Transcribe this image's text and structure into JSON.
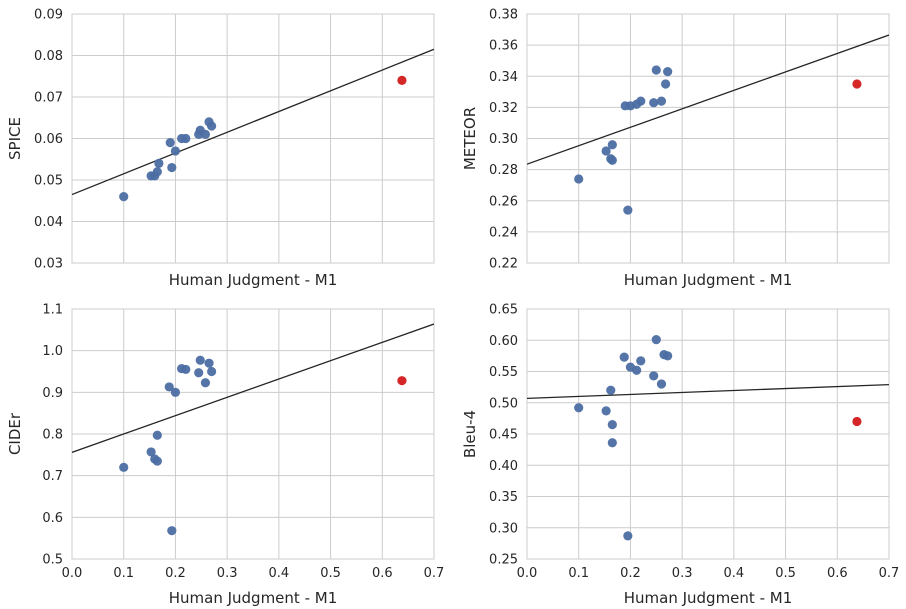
{
  "colors": {
    "point": "#4c6ea3",
    "outlier": "#d62728",
    "fit_line": "#262626",
    "grid": "#cccccc"
  },
  "chart_data": [
    {
      "type": "scatter",
      "xlabel": "Human Judgment - M1",
      "ylabel": "SPICE",
      "xlim": [
        0.0,
        0.7
      ],
      "ylim": [
        0.03,
        0.09
      ],
      "xticks": [
        "0.0",
        "0.1",
        "0.2",
        "0.3",
        "0.4",
        "0.5",
        "0.6",
        "0.7"
      ],
      "yticks": [
        "0.03",
        "0.04",
        "0.05",
        "0.06",
        "0.07",
        "0.08",
        "0.09"
      ],
      "show_xtick_labels": false,
      "grid": true,
      "points": [
        [
          0.1,
          0.046
        ],
        [
          0.153,
          0.051
        ],
        [
          0.16,
          0.051
        ],
        [
          0.165,
          0.052
        ],
        [
          0.168,
          0.054
        ],
        [
          0.19,
          0.059
        ],
        [
          0.193,
          0.053
        ],
        [
          0.2,
          0.057
        ],
        [
          0.212,
          0.06
        ],
        [
          0.22,
          0.06
        ],
        [
          0.245,
          0.061
        ],
        [
          0.248,
          0.062
        ],
        [
          0.258,
          0.061
        ],
        [
          0.265,
          0.064
        ],
        [
          0.27,
          0.063
        ]
      ],
      "outlier": [
        0.638,
        0.074
      ],
      "fit_line": [
        [
          0.0,
          0.0465
        ],
        [
          0.7,
          0.0815
        ]
      ]
    },
    {
      "type": "scatter",
      "xlabel": "Human Judgment - M1",
      "ylabel": "METEOR",
      "xlim": [
        0.0,
        0.7
      ],
      "ylim": [
        0.22,
        0.38
      ],
      "xticks": [
        "0.0",
        "0.1",
        "0.2",
        "0.3",
        "0.4",
        "0.5",
        "0.6",
        "0.7"
      ],
      "yticks": [
        "0.22",
        "0.24",
        "0.26",
        "0.28",
        "0.30",
        "0.32",
        "0.34",
        "0.36",
        "0.38"
      ],
      "show_xtick_labels": false,
      "grid": true,
      "points": [
        [
          0.1,
          0.274
        ],
        [
          0.153,
          0.292
        ],
        [
          0.162,
          0.287
        ],
        [
          0.165,
          0.296
        ],
        [
          0.165,
          0.286
        ],
        [
          0.19,
          0.321
        ],
        [
          0.195,
          0.254
        ],
        [
          0.2,
          0.321
        ],
        [
          0.212,
          0.322
        ],
        [
          0.22,
          0.324
        ],
        [
          0.245,
          0.323
        ],
        [
          0.25,
          0.344
        ],
        [
          0.26,
          0.324
        ],
        [
          0.268,
          0.335
        ],
        [
          0.272,
          0.343
        ]
      ],
      "outlier": [
        0.638,
        0.335
      ],
      "fit_line": [
        [
          0.0,
          0.2835
        ],
        [
          0.7,
          0.3665
        ]
      ]
    },
    {
      "type": "scatter",
      "xlabel": "Human Judgment - M1",
      "ylabel": "CIDEr",
      "xlim": [
        0.0,
        0.7
      ],
      "ylim": [
        0.5,
        1.1
      ],
      "xticks": [
        "0.0",
        "0.1",
        "0.2",
        "0.3",
        "0.4",
        "0.5",
        "0.6",
        "0.7"
      ],
      "yticks": [
        "0.5",
        "0.6",
        "0.7",
        "0.8",
        "0.9",
        "1.0",
        "1.1"
      ],
      "show_xtick_labels": true,
      "grid": true,
      "points": [
        [
          0.1,
          0.72
        ],
        [
          0.153,
          0.757
        ],
        [
          0.16,
          0.74
        ],
        [
          0.165,
          0.735
        ],
        [
          0.165,
          0.797
        ],
        [
          0.188,
          0.913
        ],
        [
          0.193,
          0.568
        ],
        [
          0.2,
          0.9
        ],
        [
          0.212,
          0.957
        ],
        [
          0.22,
          0.955
        ],
        [
          0.245,
          0.947
        ],
        [
          0.248,
          0.977
        ],
        [
          0.258,
          0.923
        ],
        [
          0.265,
          0.97
        ],
        [
          0.27,
          0.95
        ]
      ],
      "outlier": [
        0.638,
        0.928
      ],
      "fit_line": [
        [
          0.0,
          0.756
        ],
        [
          0.7,
          1.064
        ]
      ]
    },
    {
      "type": "scatter",
      "xlabel": "Human Judgment - M1",
      "ylabel": "Bleu-4",
      "xlim": [
        0.0,
        0.7
      ],
      "ylim": [
        0.25,
        0.65
      ],
      "xticks": [
        "0.0",
        "0.1",
        "0.2",
        "0.3",
        "0.4",
        "0.5",
        "0.6",
        "0.7"
      ],
      "yticks": [
        "0.25",
        "0.30",
        "0.35",
        "0.40",
        "0.45",
        "0.50",
        "0.55",
        "0.60",
        "0.65"
      ],
      "show_xtick_labels": true,
      "grid": true,
      "points": [
        [
          0.1,
          0.492
        ],
        [
          0.153,
          0.487
        ],
        [
          0.162,
          0.52
        ],
        [
          0.165,
          0.465
        ],
        [
          0.165,
          0.436
        ],
        [
          0.188,
          0.573
        ],
        [
          0.195,
          0.287
        ],
        [
          0.2,
          0.557
        ],
        [
          0.212,
          0.552
        ],
        [
          0.22,
          0.567
        ],
        [
          0.245,
          0.543
        ],
        [
          0.25,
          0.601
        ],
        [
          0.26,
          0.53
        ],
        [
          0.265,
          0.577
        ],
        [
          0.272,
          0.575
        ]
      ],
      "outlier": [
        0.638,
        0.47
      ],
      "fit_line": [
        [
          0.0,
          0.507
        ],
        [
          0.7,
          0.529
        ]
      ]
    }
  ]
}
